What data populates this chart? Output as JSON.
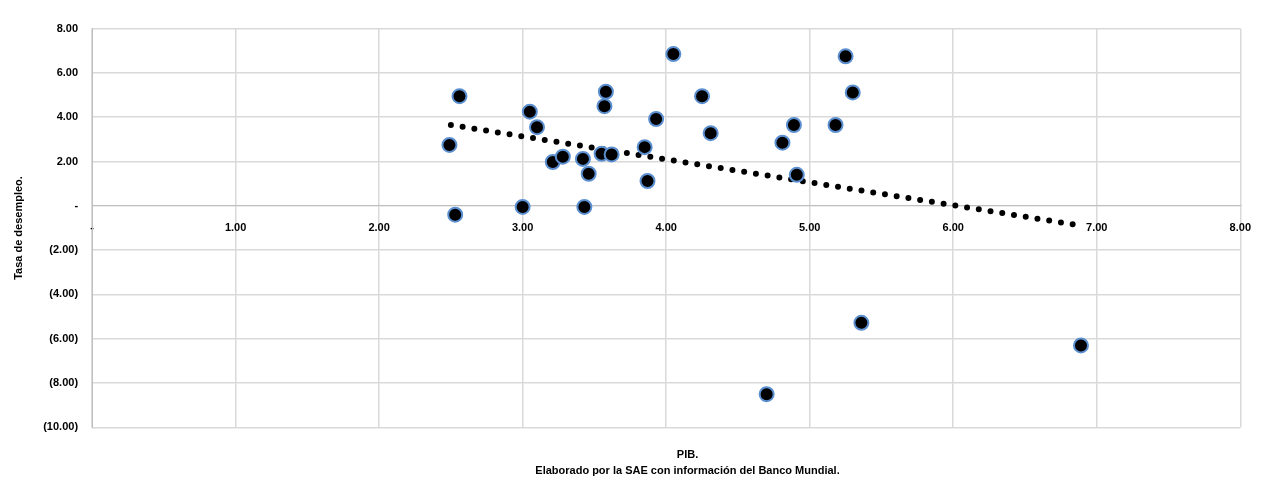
{
  "chart_data": {
    "type": "scatter",
    "xlabel": "PIB.",
    "ylabel": "Tasa de desempleo.",
    "annotations": [
      "Elaborado por la SAE con información del Banco Mundial."
    ],
    "xlim": [
      0,
      8
    ],
    "xticks": [
      {
        "value": 0,
        "label": "-"
      },
      {
        "value": 1,
        "label": "1.00"
      },
      {
        "value": 2,
        "label": "2.00"
      },
      {
        "value": 3,
        "label": "3.00"
      },
      {
        "value": 4,
        "label": "4.00"
      },
      {
        "value": 5,
        "label": "5.00"
      },
      {
        "value": 6,
        "label": "6.00"
      },
      {
        "value": 7,
        "label": "7.00"
      },
      {
        "value": 8,
        "label": "8.00"
      }
    ],
    "ylim": [
      -10,
      8
    ],
    "yticks": [
      {
        "value": 8,
        "label": "8.00"
      },
      {
        "value": 6,
        "label": "6.00"
      },
      {
        "value": 4,
        "label": "4.00"
      },
      {
        "value": 2,
        "label": "2.00"
      },
      {
        "value": 0,
        "label": "-"
      },
      {
        "value": -2,
        "label": "(2.00)"
      },
      {
        "value": -4,
        "label": "(4.00)"
      },
      {
        "value": -6,
        "label": "(6.00)"
      },
      {
        "value": -8,
        "label": "(8.00)"
      },
      {
        "value": -10,
        "label": "(10.00)"
      }
    ],
    "grid": true,
    "legend": false,
    "marker": "circle",
    "series": [
      {
        "color": "#000000",
        "x": [
          2.49,
          2.53,
          2.56,
          3.0,
          3.05,
          3.1,
          3.21,
          3.28,
          3.42,
          3.43,
          3.46,
          3.55,
          3.57,
          3.58,
          3.62,
          3.85,
          3.87,
          3.93,
          4.05,
          4.25,
          4.31,
          4.7,
          4.81,
          4.89,
          4.91,
          5.18,
          5.25,
          5.3,
          5.36,
          6.89
        ],
        "values": [
          2.75,
          -0.4,
          4.95,
          -0.05,
          4.25,
          3.55,
          1.98,
          2.22,
          2.12,
          -0.05,
          1.45,
          2.35,
          4.5,
          5.15,
          2.32,
          2.65,
          1.12,
          3.92,
          6.85,
          4.95,
          3.28,
          -8.5,
          2.85,
          3.65,
          1.4,
          3.65,
          6.75,
          5.12,
          -5.28,
          -6.3
        ]
      },
      {
        "type": "line",
        "color": "#000000",
        "line_style": "dotted",
        "marker": "none",
        "x": [
          2.5,
          6.85
        ],
        "values": [
          3.65,
          -0.85
        ]
      }
    ]
  }
}
